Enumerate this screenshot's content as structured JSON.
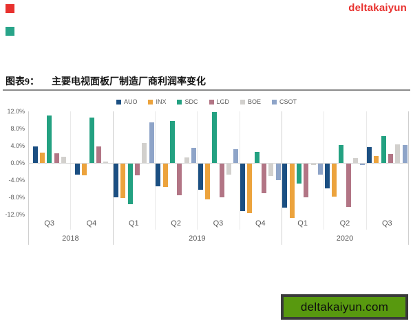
{
  "watermarks": {
    "top_right_text": "deltakaiyun",
    "bottom_box_text": "deltakaiyun.com",
    "red_square_color": "#e8312e",
    "teal_square_color": "#28a489",
    "bottom_box_bg": "#58990f",
    "bottom_box_border": "#3a3a3a"
  },
  "figure": {
    "label": "图表9：",
    "title": "主要电视面板厂制造厂商利润率变化"
  },
  "chart_data": {
    "type": "bar",
    "title": "主要电视面板厂制造厂商利润率变化",
    "categories": [
      "Q3",
      "Q4",
      "Q1",
      "Q2",
      "Q3",
      "Q4",
      "Q1",
      "Q2",
      "Q3"
    ],
    "year_groups": [
      {
        "label": "2018",
        "count": 2
      },
      {
        "label": "2019",
        "count": 4
      },
      {
        "label": "2020",
        "count": 3
      }
    ],
    "series": [
      {
        "name": "AUO",
        "color": "#1b4f82",
        "values": [
          3.9,
          -2.5,
          -7.9,
          -5.2,
          -6.0,
          -11.0,
          -10.2,
          -5.8,
          3.7
        ]
      },
      {
        "name": "INX",
        "color": "#eca33d",
        "values": [
          2.4,
          -2.7,
          -8.0,
          -5.5,
          -8.3,
          -11.5,
          -12.7,
          -7.6,
          1.6
        ]
      },
      {
        "name": "SDC",
        "color": "#23a181",
        "values": [
          11.0,
          10.5,
          -9.5,
          9.7,
          11.8,
          2.5,
          -4.7,
          4.2,
          6.3
        ]
      },
      {
        "name": "LGD",
        "color": "#b27585",
        "values": [
          2.3,
          3.8,
          -2.7,
          -7.3,
          -7.8,
          -6.8,
          -7.9,
          -10.0,
          2.1
        ]
      },
      {
        "name": "BOE",
        "color": "#d2d0cd",
        "values": [
          1.4,
          0.4,
          4.7,
          1.3,
          -2.5,
          -2.8,
          -0.3,
          1.1,
          4.4
        ]
      },
      {
        "name": "CSOT",
        "color": "#8ea4c8",
        "values": [
          null,
          null,
          9.4,
          3.6,
          3.2,
          -3.9,
          -2.6,
          -0.3,
          4.2
        ]
      }
    ],
    "ylim": [
      -12,
      12
    ],
    "ytick_step": 4,
    "ytick_labels": [
      "12.0%",
      "8.0%",
      "4.0%",
      "0.0%",
      "-4.0%",
      "-8.0%",
      "-12.0%"
    ],
    "ylabel": "",
    "xlabel": "",
    "legend_position": "top",
    "grid": "vertical-quarter-separators"
  }
}
